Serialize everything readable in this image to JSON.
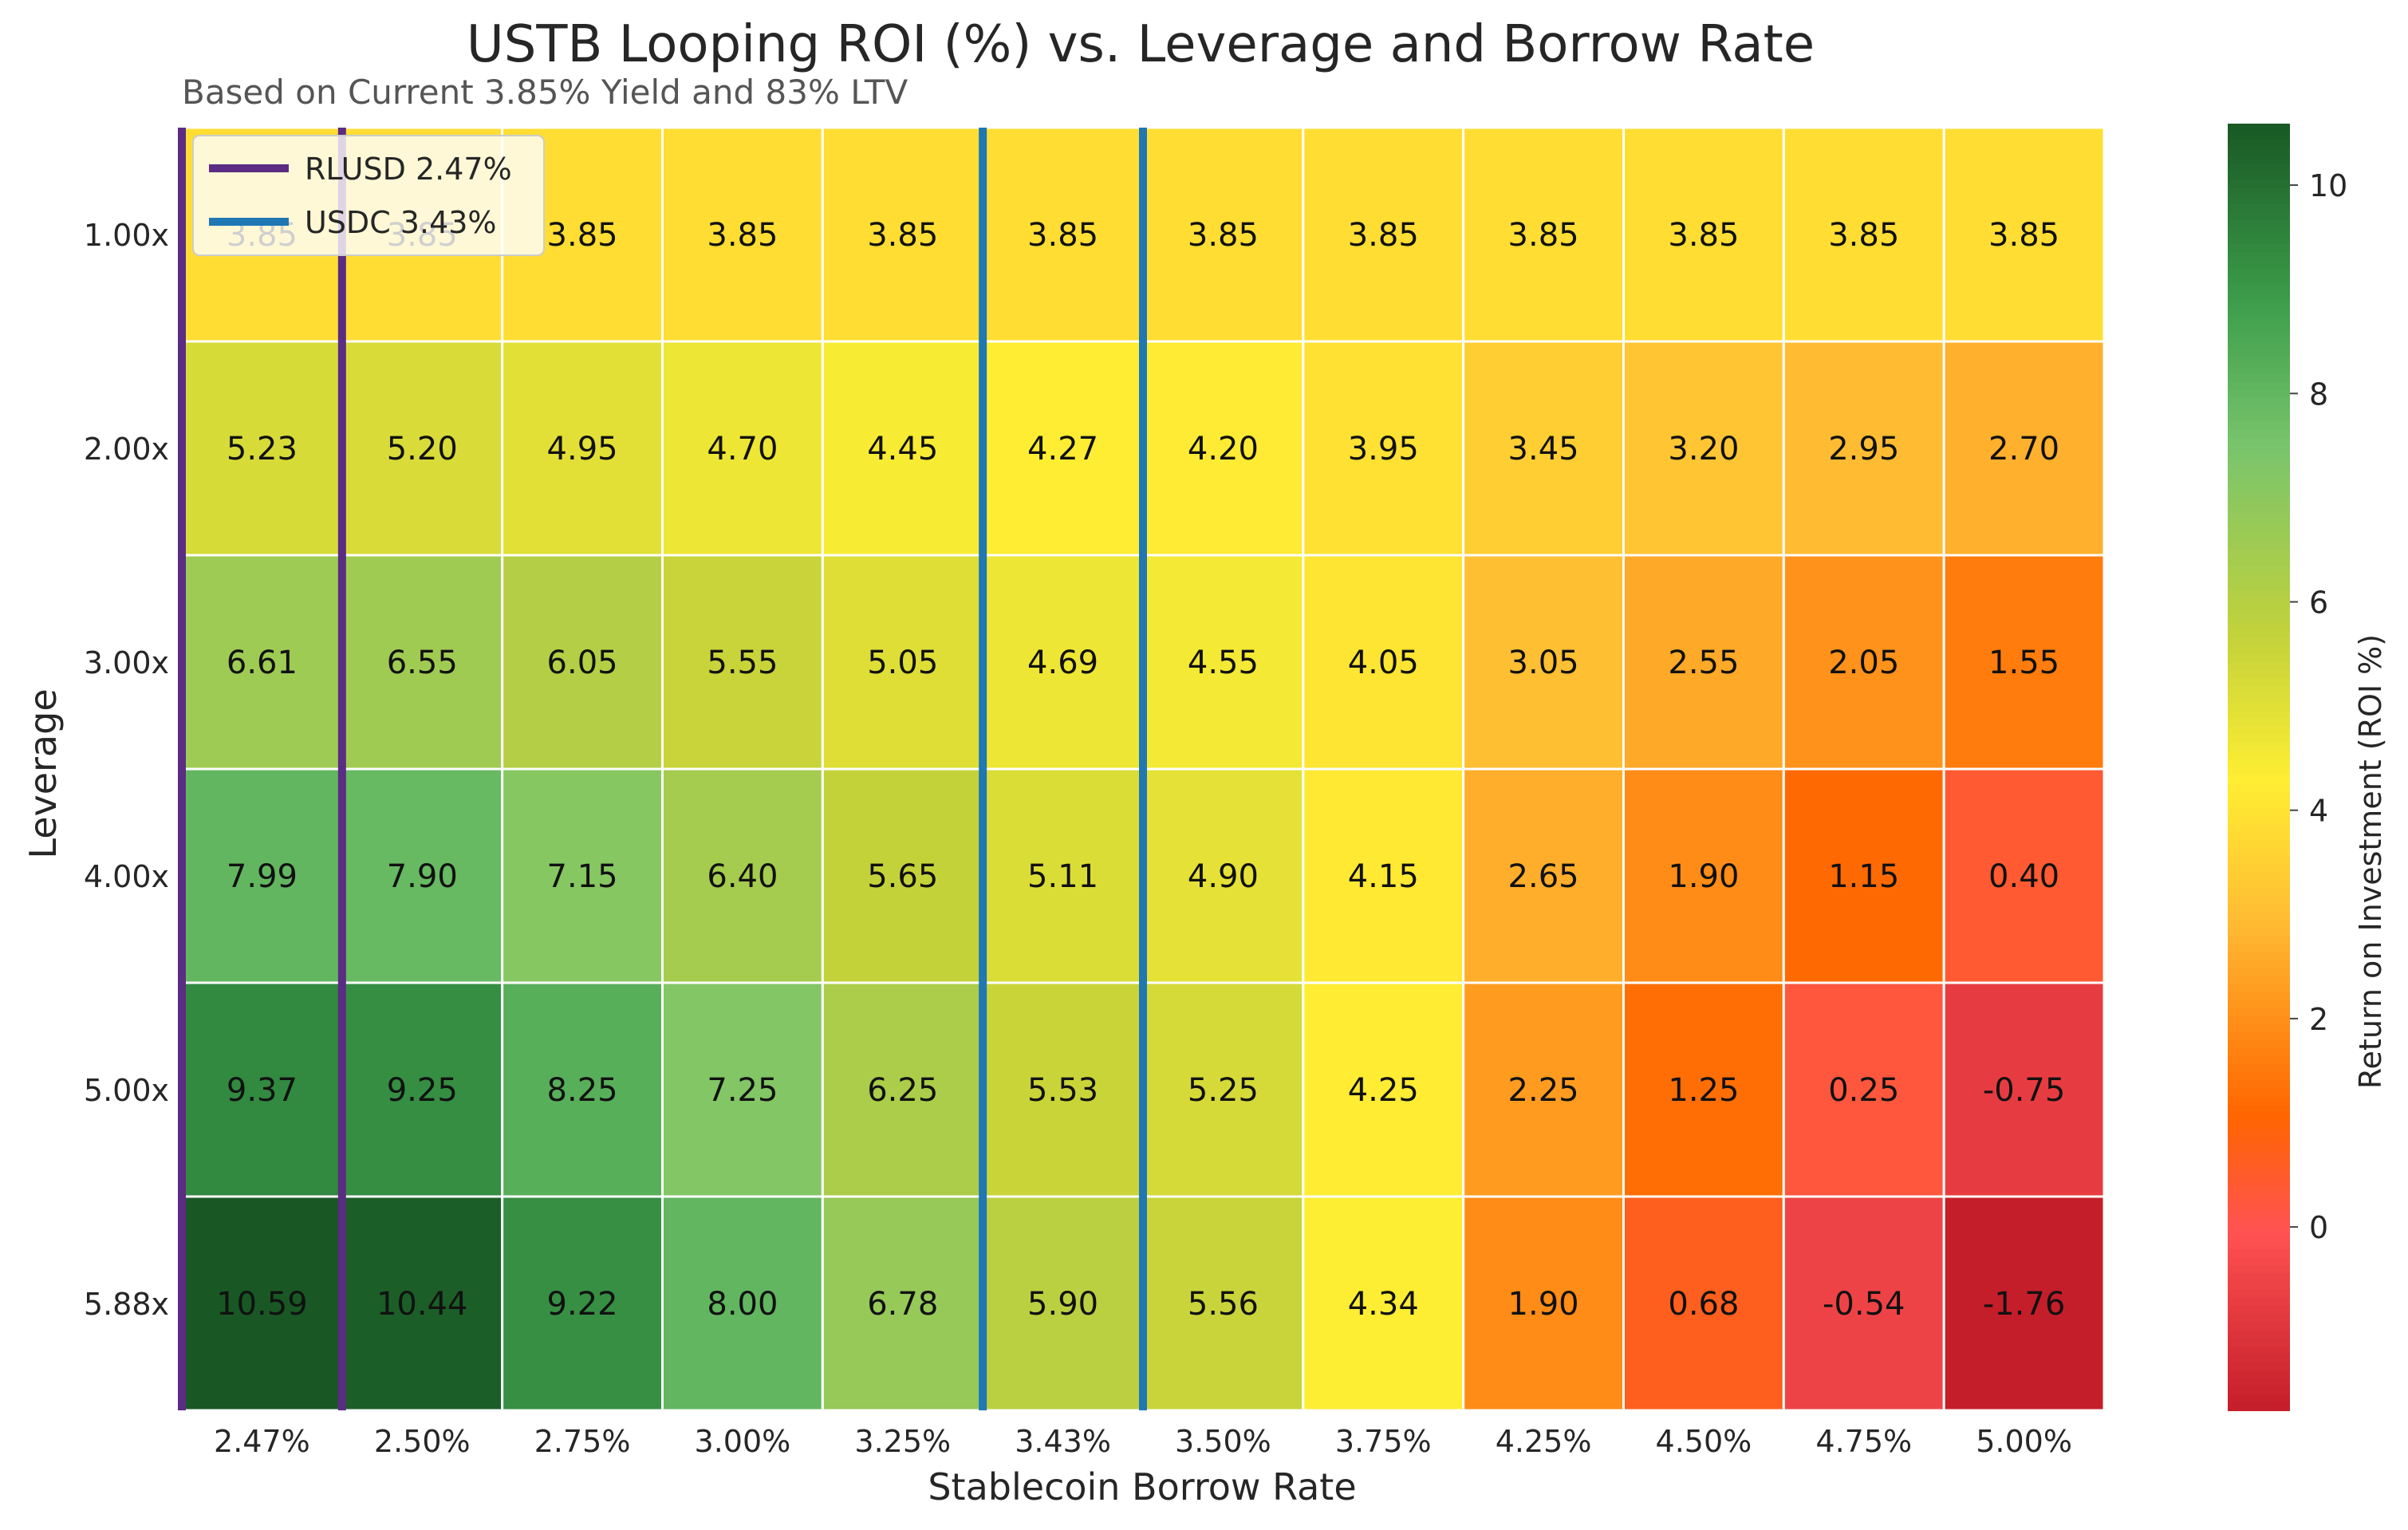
{
  "chart_data": {
    "type": "heatmap",
    "title": "USTB Looping ROI (%) vs. Leverage and Borrow Rate",
    "subtitle": "Based on Current 3.85% Yield and 83% LTV",
    "xlabel": "Stablecoin Borrow Rate",
    "ylabel": "Leverage",
    "colorbar_label": "Return on Investment (ROI %)",
    "x_categories": [
      "2.47%",
      "2.50%",
      "2.75%",
      "3.00%",
      "3.25%",
      "3.43%",
      "3.50%",
      "3.75%",
      "4.25%",
      "4.50%",
      "4.75%",
      "5.00%"
    ],
    "y_categories": [
      "1.00x",
      "2.00x",
      "3.00x",
      "4.00x",
      "5.00x",
      "5.88x"
    ],
    "values": [
      [
        3.85,
        3.85,
        3.85,
        3.85,
        3.85,
        3.85,
        3.85,
        3.85,
        3.85,
        3.85,
        3.85,
        3.85
      ],
      [
        5.23,
        5.2,
        4.95,
        4.7,
        4.45,
        4.27,
        4.2,
        3.95,
        3.45,
        3.2,
        2.95,
        2.7
      ],
      [
        6.61,
        6.55,
        6.05,
        5.55,
        5.05,
        4.69,
        4.55,
        4.05,
        3.05,
        2.55,
        2.05,
        1.55
      ],
      [
        7.99,
        7.9,
        7.15,
        6.4,
        5.65,
        5.11,
        4.9,
        4.15,
        2.65,
        1.9,
        1.15,
        0.4
      ],
      [
        9.37,
        9.25,
        8.25,
        7.25,
        6.25,
        5.53,
        5.25,
        4.25,
        2.25,
        1.25,
        0.25,
        -0.75
      ],
      [
        10.59,
        10.44,
        9.22,
        8.0,
        6.78,
        5.9,
        5.56,
        4.34,
        1.9,
        0.68,
        -0.54,
        -1.76
      ]
    ],
    "cell_labels": [
      [
        "3.85",
        "3.85",
        "3.85",
        "3.85",
        "3.85",
        "3.85",
        "3.85",
        "3.85",
        "3.85",
        "3.85",
        "3.85",
        "3.85"
      ],
      [
        "5.23",
        "5.20",
        "4.95",
        "4.70",
        "4.45",
        "4.27",
        "4.20",
        "3.95",
        "3.45",
        "3.20",
        "2.95",
        "2.70"
      ],
      [
        "6.61",
        "6.55",
        "6.05",
        "5.55",
        "5.05",
        "4.69",
        "4.55",
        "4.05",
        "3.05",
        "2.55",
        "2.05",
        "1.55"
      ],
      [
        "7.99",
        "7.90",
        "7.15",
        "6.40",
        "5.65",
        "5.11",
        "4.90",
        "4.15",
        "2.65",
        "1.90",
        "1.15",
        "0.40"
      ],
      [
        "9.37",
        "9.25",
        "8.25",
        "7.25",
        "6.25",
        "5.53",
        "5.25",
        "4.25",
        "2.25",
        "1.25",
        "0.25",
        "-0.75"
      ],
      [
        "10.59",
        "10.44",
        "9.22",
        "8.00",
        "6.78",
        "5.90",
        "5.56",
        "4.34",
        "1.90",
        "0.68",
        "-0.54",
        "-1.76"
      ]
    ],
    "color_range": [
      -1.76,
      10.59
    ],
    "colorbar_ticks": [
      0,
      2,
      4,
      6,
      8,
      10
    ],
    "colorbar_tick_labels": [
      "0",
      "2",
      "4",
      "6",
      "8",
      "10"
    ],
    "vertical_lines": [
      {
        "name": "RLUSD 2.47%",
        "color": "#5b2c83",
        "category_edges": [
          0,
          1
        ]
      },
      {
        "name": "USDC 3.43%",
        "color": "#1f77b4",
        "category_edges": [
          5,
          6
        ]
      }
    ],
    "legend_position": "upper-left"
  }
}
